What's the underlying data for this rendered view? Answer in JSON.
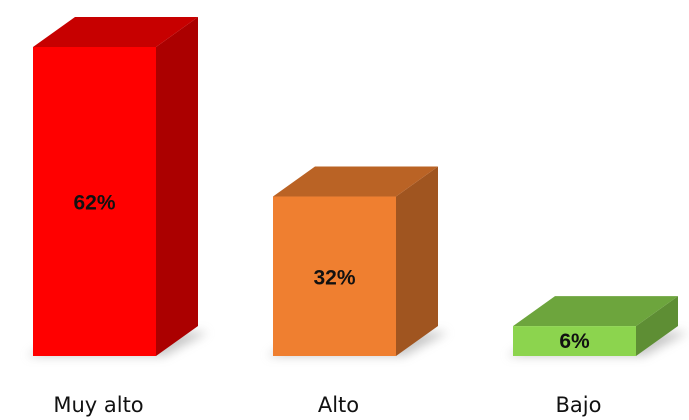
{
  "chart_data": {
    "type": "bar",
    "style": "3d",
    "categories": [
      "Muy alto",
      "Alto",
      "Bajo"
    ],
    "values": [
      62,
      32,
      6
    ],
    "data_labels": [
      "62%",
      "32%",
      "6%"
    ],
    "colors": [
      "#ff0000",
      "#ef7f30",
      "#8cd44e"
    ],
    "ylim": [
      0,
      62
    ],
    "grid": false,
    "legend": "none"
  }
}
